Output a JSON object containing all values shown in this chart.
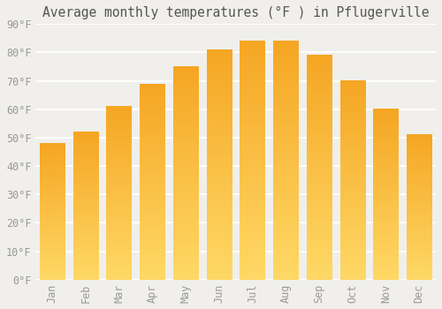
{
  "title": "Average monthly temperatures (°F ) in Pflugerville",
  "months": [
    "Jan",
    "Feb",
    "Mar",
    "Apr",
    "May",
    "Jun",
    "Jul",
    "Aug",
    "Sep",
    "Oct",
    "Nov",
    "Dec"
  ],
  "values": [
    48,
    52,
    61,
    69,
    75,
    81,
    84,
    84,
    79,
    70,
    60,
    51
  ],
  "bar_color_top": "#F5A623",
  "bar_color_bottom": "#FFD966",
  "ylim": [
    0,
    90
  ],
  "yticks": [
    0,
    10,
    20,
    30,
    40,
    50,
    60,
    70,
    80,
    90
  ],
  "ytick_labels": [
    "0°F",
    "10°F",
    "20°F",
    "30°F",
    "40°F",
    "50°F",
    "60°F",
    "70°F",
    "80°F",
    "90°F"
  ],
  "bg_color": "#F0EFEB",
  "grid_color": "#FFFFFF",
  "title_fontsize": 10.5,
  "tick_fontsize": 8.5,
  "bar_edge_color": "white",
  "bar_edge_width": 1.5
}
